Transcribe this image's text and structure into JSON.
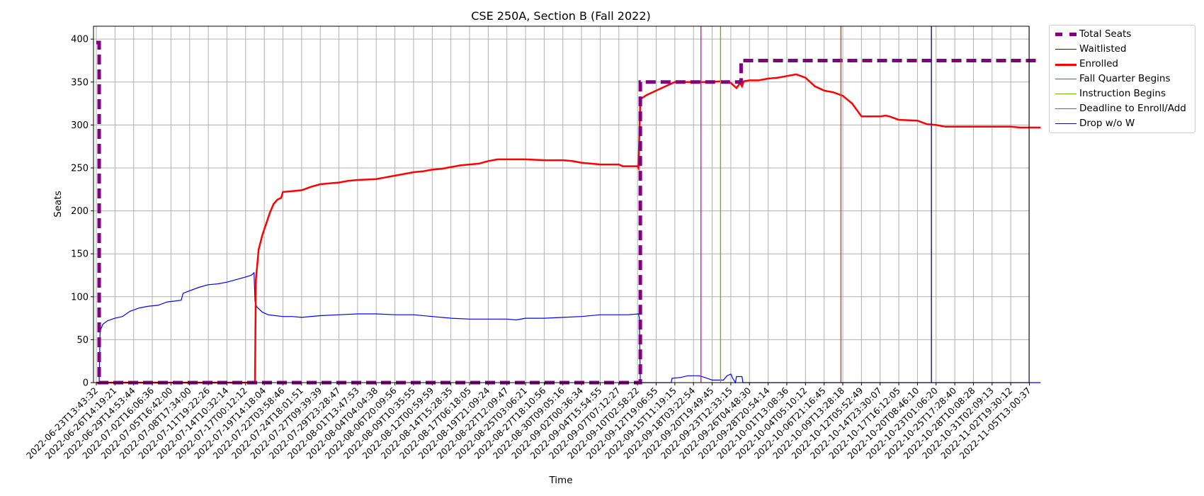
{
  "chart_data": {
    "type": "line",
    "title": "CSE 250A, Section B (Fall 2022)",
    "xlabel": "Time",
    "ylabel": "Seats",
    "ylim": [
      0,
      415
    ],
    "yticks": [
      0,
      50,
      100,
      150,
      200,
      250,
      300,
      350,
      400
    ],
    "grid": true,
    "legend_position": "outside-top-right",
    "x_ticks": [
      "2022-06-23T13:43:32",
      "2022-06-26T14:19:21",
      "2022-06-29T14:53:44",
      "2022-07-02T16:06:36",
      "2022-07-05T16:42:00",
      "2022-07-08T17:34:00",
      "2022-07-11T19:22:26",
      "2022-07-14T10:32:14",
      "2022-07-17T00:12:12",
      "2022-07-19T14:18:04",
      "2022-07-22T03:58:46",
      "2022-07-24T18:01:51",
      "2022-07-27T09:39:39",
      "2022-07-29T23:28:47",
      "2022-08-01T13:47:53",
      "2022-08-04T04:04:38",
      "2022-08-06T20:09:56",
      "2022-08-09T10:35:55",
      "2022-08-12T00:59:59",
      "2022-08-14T15:28:35",
      "2022-08-17T06:18:05",
      "2022-08-19T21:09:24",
      "2022-08-22T12:09:47",
      "2022-08-25T03:06:21",
      "2022-08-27T18:10:56",
      "2022-08-30T09:05:16",
      "2022-09-02T00:36:34",
      "2022-09-04T15:54:55",
      "2022-09-07T07:12:27",
      "2022-09-10T02:58:22",
      "2022-09-12T19:06:55",
      "2022-09-15T11:19:15",
      "2022-09-18T03:22:54",
      "2022-09-20T19:49:45",
      "2022-09-23T12:33:15",
      "2022-09-26T04:48:30",
      "2022-09-28T20:54:14",
      "2022-10-01T13:08:36",
      "2022-10-04T05:10:12",
      "2022-10-06T21:16:45",
      "2022-10-09T13:28:18",
      "2022-10-12T05:52:49",
      "2022-10-14T23:30:07",
      "2022-10-17T16:12:05",
      "2022-10-20T08:46:10",
      "2022-10-23T01:06:20",
      "2022-10-25T17:28:40",
      "2022-10-28T10:08:28",
      "2022-10-31T02:09:13",
      "2022-11-02T19:30:12",
      "2022-11-05T13:00:37"
    ],
    "series": [
      {
        "name": "Total Seats",
        "color": "#800080",
        "style": "dashed-thick",
        "points": [
          [
            0,
            396
          ],
          [
            0.15,
            396
          ],
          [
            0.15,
            0
          ],
          [
            29.15,
            0
          ],
          [
            29.15,
            350
          ],
          [
            34.55,
            350
          ],
          [
            34.55,
            375
          ],
          [
            50.6,
            375
          ]
        ]
      },
      {
        "name": "Waitlisted",
        "color": "#0000ff",
        "style": "thin",
        "points": [
          [
            0,
            0
          ],
          [
            0.15,
            0
          ],
          [
            0.2,
            60
          ],
          [
            0.35,
            68
          ],
          [
            0.6,
            72
          ],
          [
            1.0,
            75
          ],
          [
            1.4,
            77
          ],
          [
            1.8,
            83
          ],
          [
            2.3,
            87
          ],
          [
            2.8,
            89
          ],
          [
            3.3,
            90
          ],
          [
            3.8,
            94
          ],
          [
            4.2,
            95
          ],
          [
            4.55,
            96
          ],
          [
            4.65,
            104
          ],
          [
            5.0,
            107
          ],
          [
            5.5,
            111
          ],
          [
            6.0,
            114
          ],
          [
            6.5,
            115
          ],
          [
            7.0,
            117
          ],
          [
            7.5,
            120
          ],
          [
            8.0,
            123
          ],
          [
            8.3,
            125
          ],
          [
            8.45,
            128
          ],
          [
            8.5,
            95
          ],
          [
            8.6,
            88
          ],
          [
            8.9,
            82
          ],
          [
            9.2,
            79
          ],
          [
            9.6,
            78
          ],
          [
            10,
            77
          ],
          [
            10.5,
            77
          ],
          [
            11,
            76
          ],
          [
            12,
            78
          ],
          [
            13,
            79
          ],
          [
            14,
            80
          ],
          [
            15,
            80
          ],
          [
            16,
            79
          ],
          [
            17,
            79
          ],
          [
            18,
            77
          ],
          [
            19,
            75
          ],
          [
            20,
            74
          ],
          [
            21,
            74
          ],
          [
            22,
            74
          ],
          [
            22.5,
            73
          ],
          [
            23,
            75
          ],
          [
            24,
            75
          ],
          [
            25,
            76
          ],
          [
            26,
            77
          ],
          [
            27,
            79
          ],
          [
            28,
            79
          ],
          [
            28.5,
            79
          ],
          [
            29.05,
            80
          ],
          [
            29.1,
            75
          ],
          [
            29.15,
            0
          ],
          [
            30.8,
            0
          ],
          [
            30.85,
            5
          ],
          [
            31.3,
            6
          ],
          [
            31.7,
            8
          ],
          [
            32.3,
            8
          ],
          [
            32.6,
            6
          ],
          [
            33,
            3
          ],
          [
            33.6,
            3
          ],
          [
            33.8,
            8
          ],
          [
            34.0,
            10
          ],
          [
            34.1,
            5
          ],
          [
            34.25,
            0
          ],
          [
            34.3,
            7
          ],
          [
            34.6,
            7
          ],
          [
            34.65,
            0
          ],
          [
            50.6,
            0
          ]
        ]
      },
      {
        "name": "Enrolled",
        "color": "#ff0000",
        "style": "thick",
        "points": [
          [
            0,
            0
          ],
          [
            8.5,
            0
          ],
          [
            8.55,
            120
          ],
          [
            8.7,
            155
          ],
          [
            8.9,
            172
          ],
          [
            9.1,
            185
          ],
          [
            9.3,
            198
          ],
          [
            9.5,
            208
          ],
          [
            9.7,
            213
          ],
          [
            9.9,
            215
          ],
          [
            10.0,
            222
          ],
          [
            10.5,
            223
          ],
          [
            11,
            224
          ],
          [
            11.5,
            228
          ],
          [
            12,
            231
          ],
          [
            12.5,
            232
          ],
          [
            13,
            233
          ],
          [
            13.5,
            235
          ],
          [
            14,
            236
          ],
          [
            15,
            237
          ],
          [
            15.5,
            239
          ],
          [
            16,
            241
          ],
          [
            16.5,
            243
          ],
          [
            17,
            245
          ],
          [
            17.5,
            246
          ],
          [
            18,
            248
          ],
          [
            18.5,
            249
          ],
          [
            19,
            251
          ],
          [
            19.5,
            253
          ],
          [
            20,
            254
          ],
          [
            20.5,
            255
          ],
          [
            21,
            258
          ],
          [
            21.5,
            260
          ],
          [
            22,
            260
          ],
          [
            23,
            260
          ],
          [
            24,
            259
          ],
          [
            25,
            259
          ],
          [
            25.5,
            258
          ],
          [
            26,
            256
          ],
          [
            26.5,
            255
          ],
          [
            27,
            254
          ],
          [
            28,
            254
          ],
          [
            28.2,
            252
          ],
          [
            29.0,
            252
          ],
          [
            29.05,
            250
          ],
          [
            29.15,
            330
          ],
          [
            29.5,
            335
          ],
          [
            30,
            340
          ],
          [
            30.5,
            345
          ],
          [
            31,
            350
          ],
          [
            32,
            350
          ],
          [
            33,
            350
          ],
          [
            33.5,
            351
          ],
          [
            34,
            349
          ],
          [
            34.3,
            343
          ],
          [
            34.5,
            349
          ],
          [
            34.6,
            345
          ],
          [
            34.7,
            351
          ],
          [
            35,
            352
          ],
          [
            35.5,
            352
          ],
          [
            36,
            354
          ],
          [
            36.5,
            355
          ],
          [
            37,
            357
          ],
          [
            37.5,
            359
          ],
          [
            38,
            355
          ],
          [
            38.5,
            345
          ],
          [
            39,
            340
          ],
          [
            39.5,
            338
          ],
          [
            40,
            334
          ],
          [
            40.5,
            325
          ],
          [
            40.8,
            316
          ],
          [
            41.0,
            310
          ],
          [
            42,
            310
          ],
          [
            42.3,
            311
          ],
          [
            42.5,
            310
          ],
          [
            43,
            306
          ],
          [
            44,
            305
          ],
          [
            44.5,
            301
          ],
          [
            45,
            300
          ],
          [
            45.5,
            298
          ],
          [
            48,
            298
          ],
          [
            49,
            298
          ],
          [
            49.5,
            297
          ],
          [
            50.6,
            297
          ]
        ]
      }
    ],
    "markers": [
      {
        "name": "Fall Quarter Begins",
        "color": "#e6119e",
        "x": 32.4
      },
      {
        "name": "Instruction Begins",
        "color": "#77b300",
        "x": 33.45
      },
      {
        "name": "Deadline to Enroll/Add",
        "color": "#c04a1a",
        "x": 39.9
      },
      {
        "name": "Drop w/o W",
        "color": "#1d0a93",
        "x": 44.75
      }
    ]
  },
  "legend": {
    "items": [
      {
        "label": "Total Seats",
        "color": "#800080",
        "style": "dashed-thick"
      },
      {
        "label": "Waitlisted",
        "color": "#0000ff",
        "style": "thin"
      },
      {
        "label": "Enrolled",
        "color": "#ff0000",
        "style": "thick"
      },
      {
        "label": "Fall Quarter Begins",
        "color": "#e6119e",
        "style": "thin"
      },
      {
        "label": "Instruction Begins",
        "color": "#77b300",
        "style": "thin"
      },
      {
        "label": "Deadline to Enroll/Add",
        "color": "#c04a1a",
        "style": "thin"
      },
      {
        "label": "Drop w/o W",
        "color": "#1d0a93",
        "style": "thin"
      }
    ]
  }
}
